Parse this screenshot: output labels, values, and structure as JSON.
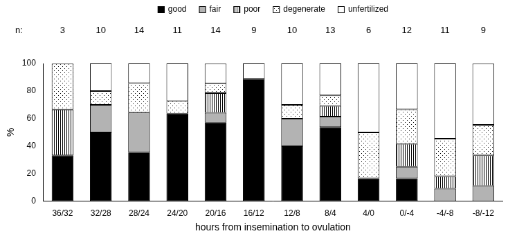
{
  "chart_data": {
    "type": "bar",
    "stacked": true,
    "grid": false,
    "legend": "top",
    "x_label": "hours from insemination to ovulation",
    "y_label": "%",
    "categories": [
      "36/32",
      "32/28",
      "28/24",
      "24/20",
      "20/16",
      "16/12",
      "12/8",
      "8/4",
      "4/0",
      "0/-4",
      "-4/-8",
      "-8/-12"
    ],
    "n_label": "n:",
    "n": [
      3,
      10,
      14,
      11,
      14,
      9,
      10,
      13,
      6,
      12,
      11,
      9
    ],
    "ylim": [
      0,
      100
    ],
    "yticks": [
      0,
      20,
      40,
      60,
      80,
      100
    ],
    "series": [
      {
        "name": "good",
        "color": "#000000",
        "values": [
          33.3,
          50,
          35.7,
          63.6,
          57.1,
          88.9,
          40,
          53.8,
          16.7,
          16.7,
          0,
          0
        ]
      },
      {
        "name": "fair",
        "color": "#b3b3b3",
        "values": [
          0,
          20,
          28.6,
          0,
          7.1,
          0,
          20,
          7.7,
          0,
          8.3,
          9.1,
          11.1
        ]
      },
      {
        "name": "poor",
        "color": "#ffffff",
        "values": [
          33.3,
          0,
          0,
          0,
          14.3,
          0,
          0,
          7.7,
          0,
          16.7,
          9.1,
          22.2
        ]
      },
      {
        "name": "degenerate",
        "color": "#ffffff",
        "values": [
          33.3,
          10,
          21.4,
          9.1,
          7.1,
          0,
          10,
          7.7,
          33.3,
          25,
          27.3,
          22.2
        ]
      },
      {
        "name": "unfertilized",
        "color": "#ffffff",
        "values": [
          0,
          20,
          14.3,
          27.3,
          14.3,
          11.1,
          30,
          23.1,
          50,
          33.3,
          54.5,
          44.4
        ]
      }
    ]
  }
}
